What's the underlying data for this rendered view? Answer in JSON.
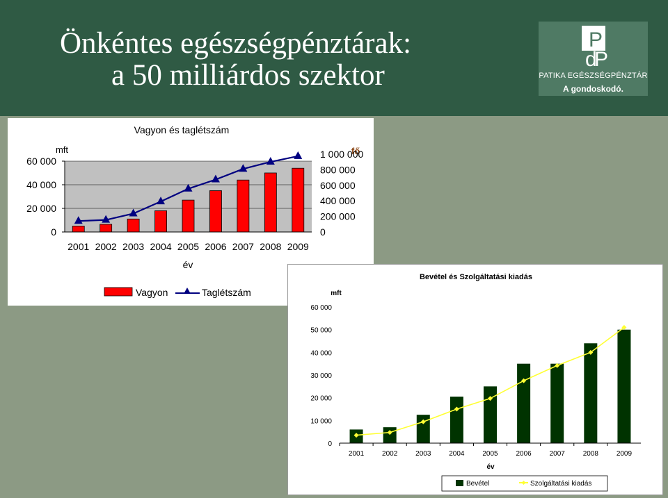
{
  "header": {
    "title_line1": "Önkéntes egészségpénztárak:",
    "title_line2": "a 50 milliárdos szektor",
    "logo_name": "PATIKA EGÉSZSÉGPÉNZTÁR",
    "logo_tagline": "A gondoskodó."
  },
  "colors": {
    "header_bg": "#2f5a44",
    "page_bg": "#8c9a84",
    "vagyon_bar": "#ff0000",
    "taglet_line": "#000080",
    "bevetel_bar": "#003300",
    "kiadas_line": "#ffff33"
  },
  "chart_data": [
    {
      "type": "bar",
      "title": "Vagyon és taglétszám",
      "categories": [
        "2001",
        "2002",
        "2003",
        "2004",
        "2005",
        "2006",
        "2007",
        "2008",
        "2009"
      ],
      "xlabel": "év",
      "ylabel_left": "mft",
      "ylabel_right": "fő",
      "left_ticks": [
        "0",
        "20 000",
        "40 000",
        "60 000"
      ],
      "right_ticks": [
        "0",
        "200 000",
        "400 000",
        "600 000",
        "800 000",
        "1 000 000"
      ],
      "ylim_left": [
        0,
        60000
      ],
      "ylim_right": [
        0,
        1000000
      ],
      "series": [
        {
          "name": "Vagyon",
          "kind": "bar",
          "axis": "left",
          "values": [
            5000,
            6500,
            11000,
            18000,
            27000,
            35000,
            44000,
            50000,
            54000
          ]
        },
        {
          "name": "Taglétszám",
          "kind": "line",
          "axis": "right",
          "values": [
            155000,
            170000,
            260000,
            430000,
            610000,
            740000,
            890000,
            990000,
            1070000
          ]
        }
      ],
      "legend_position": "bottom"
    },
    {
      "type": "bar",
      "title": "Bevétel és Szolgáltatási kiadás",
      "categories": [
        "2001",
        "2002",
        "2003",
        "2004",
        "2005",
        "2006",
        "2007",
        "2008",
        "2009"
      ],
      "xlabel": "év",
      "ylabel": "mft",
      "y_ticks": [
        "0",
        "10 000",
        "20 000",
        "30 000",
        "40 000",
        "50 000",
        "60 000"
      ],
      "ylim": [
        0,
        60000
      ],
      "series": [
        {
          "name": "Bevétel",
          "kind": "bar",
          "values": [
            6000,
            7000,
            12500,
            20500,
            25000,
            35000,
            35000,
            44000,
            50000
          ]
        },
        {
          "name": "Szolgáltatási kiadás",
          "kind": "line",
          "values": [
            3500,
            4700,
            9400,
            15000,
            19700,
            27500,
            34200,
            40000,
            51000
          ]
        }
      ],
      "legend_position": "bottom"
    }
  ]
}
